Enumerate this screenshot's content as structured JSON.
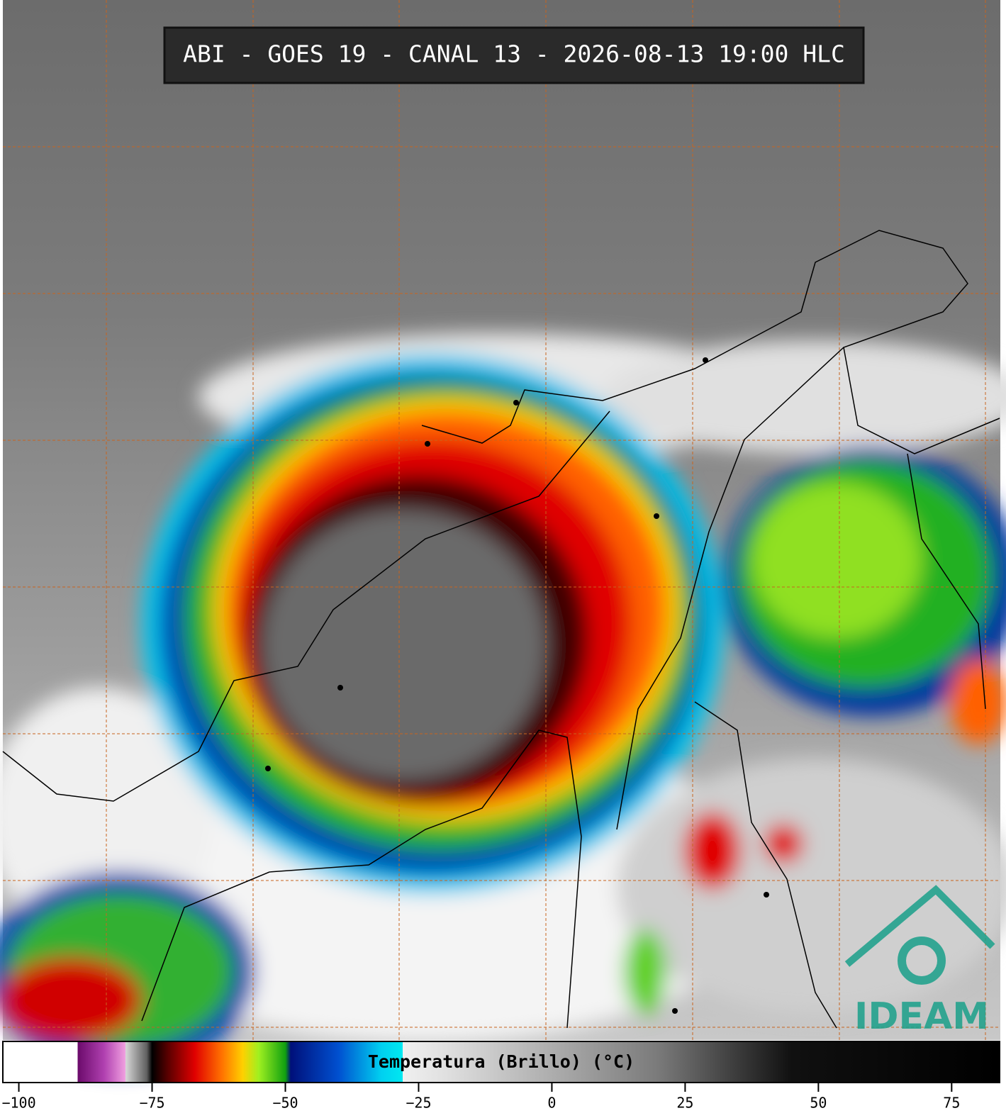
{
  "title": "ABI - GOES 19 - CANAL 13 - 2026-08-13 19:00 HLC",
  "logo": "IDEAM",
  "colorbar": {
    "label": "Temperatura (Brillo) (°C)",
    "xlim": [
      -103,
      84
    ],
    "xticks": [
      {
        "value": -100,
        "label": "−100"
      },
      {
        "value": -75,
        "label": "−75"
      },
      {
        "value": -50,
        "label": "−50"
      },
      {
        "value": -25,
        "label": "−25"
      },
      0,
      25,
      50,
      75
    ],
    "stops": [
      [
        -103,
        "#ffffff"
      ],
      [
        -89,
        "#ffffff"
      ],
      [
        -89,
        "#6a0a6a"
      ],
      [
        -84,
        "#b040b0"
      ],
      [
        -80,
        "#f0a0e0"
      ],
      [
        -80,
        "#d8d8d8"
      ],
      [
        -76,
        "#606060"
      ],
      [
        -75,
        "#000000"
      ],
      [
        -72,
        "#5a0000"
      ],
      [
        -67,
        "#e00000"
      ],
      [
        -62,
        "#ff7000"
      ],
      [
        -58,
        "#ffd000"
      ],
      [
        -55,
        "#a0f020"
      ],
      [
        -50,
        "#10a010"
      ],
      [
        -49,
        "#00107a"
      ],
      [
        -40,
        "#0050d0"
      ],
      [
        -32,
        "#00d0f0"
      ],
      [
        -28,
        "#00e8f0"
      ],
      [
        -28,
        "#f0f0f0"
      ],
      [
        -20,
        "#e0e0e0"
      ],
      [
        20,
        "#7a7a7a"
      ],
      [
        45,
        "#101010"
      ],
      [
        84,
        "#000000"
      ]
    ]
  }
}
